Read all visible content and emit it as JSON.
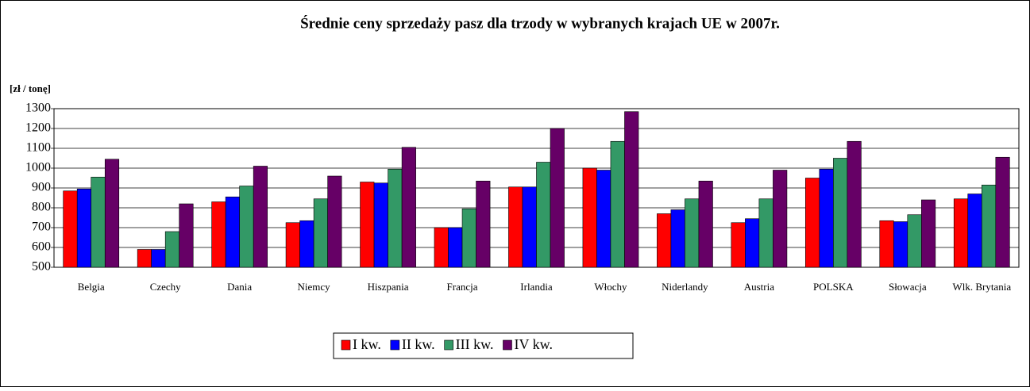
{
  "chart_data": {
    "type": "bar",
    "title": "Średnie ceny sprzedaży pasz dla trzody w wybranych krajach UE w 2007r.",
    "y_label": "[zł / tonę]",
    "categories": [
      "Belgia",
      "Czechy",
      "Dania",
      "Niemcy",
      "Hiszpania",
      "Francja",
      "Irlandia",
      "Włochy",
      "Niderlandy",
      "Austria",
      "POLSKA",
      "Słowacja",
      "Wlk. Brytania"
    ],
    "series": [
      {
        "name": "I kw.",
        "color": "#ff0000",
        "values": [
          885,
          590,
          830,
          725,
          930,
          700,
          905,
          1000,
          770,
          725,
          950,
          735,
          845
        ]
      },
      {
        "name": "II kw.",
        "color": "#0000ff",
        "values": [
          895,
          590,
          855,
          735,
          925,
          700,
          905,
          990,
          790,
          745,
          995,
          730,
          870
        ]
      },
      {
        "name": "III kw.",
        "color": "#339966",
        "values": [
          955,
          680,
          910,
          845,
          995,
          795,
          1030,
          1135,
          845,
          845,
          1050,
          765,
          915
        ]
      },
      {
        "name": "IV kw.",
        "color": "#660066",
        "values": [
          1045,
          820,
          1010,
          960,
          1105,
          935,
          1200,
          1285,
          935,
          990,
          1135,
          840,
          1055
        ]
      }
    ],
    "ylim": [
      500,
      1300
    ],
    "yticks": [
      500,
      600,
      700,
      800,
      900,
      1000,
      1100,
      1200,
      1300
    ],
    "grid": true
  }
}
